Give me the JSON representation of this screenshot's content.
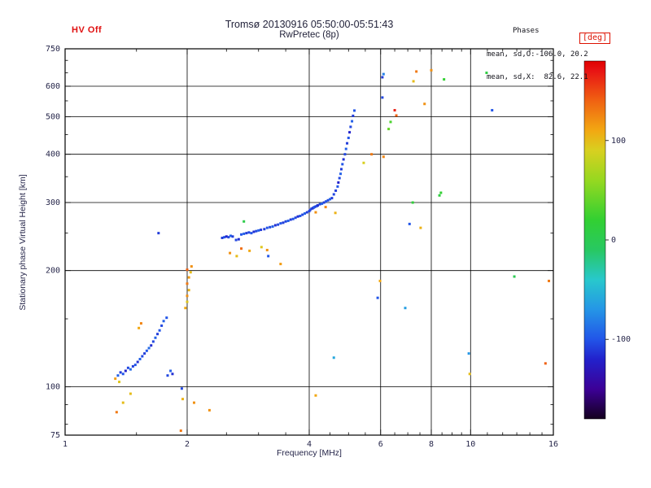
{
  "header": {
    "hv_status": "HV Off",
    "title": "Tromsø 20130916 05:50:00-05:51:43",
    "subtitle": "RwPretec (8p)",
    "phases": {
      "label": "Phases",
      "line_o": "mean, sd,O:-106.0, 20.2",
      "line_x": "mean, sd,X:  82.6, 22.1"
    }
  },
  "colors": {
    "hv_red": "#e01010",
    "text": "#26264a",
    "frame": "#000000",
    "colorbar_box_red": "#dd1100",
    "background": "#ffffff"
  },
  "chart_data": {
    "type": "scatter",
    "title": "Tromsø 20130916 05:50:00-05:51:43",
    "subtitle": "RwPretec (8p)",
    "xlabel": "Frequency [MHz]",
    "ylabel": "Stationary phase Virtual Height [km]",
    "x_scale": "log",
    "y_scale": "log",
    "xlim": [
      1,
      16
    ],
    "ylim": [
      75,
      750
    ],
    "x_ticks": [
      1,
      2,
      4,
      6,
      8,
      10,
      16
    ],
    "x_minor_ticks": [
      1.5,
      2.5,
      3,
      3.5,
      4.5,
      5,
      5.5,
      6.5,
      7,
      7.5,
      8.5,
      9,
      9.5,
      11,
      12,
      13,
      14,
      15
    ],
    "y_ticks": [
      75,
      100,
      200,
      300,
      400,
      500,
      600,
      750
    ],
    "y_minor_ticks": [
      80,
      90,
      150,
      250,
      350,
      450,
      550,
      650,
      700
    ],
    "x_grid": [
      2,
      4,
      6,
      8,
      10
    ],
    "y_grid": [
      100,
      200,
      300,
      400,
      500,
      600
    ],
    "grid": true,
    "legend": "colorbar-right",
    "colorbar": {
      "label": "[deg]",
      "ticks": [
        100,
        0,
        -100
      ],
      "range": [
        -180,
        180
      ],
      "stops": [
        [
          -180,
          "#14001e"
        ],
        [
          -150,
          "#3c0096"
        ],
        [
          -120,
          "#2222cc"
        ],
        [
          -100,
          "#2255e8"
        ],
        [
          -70,
          "#2596e6"
        ],
        [
          -40,
          "#28c8cc"
        ],
        [
          -10,
          "#28c862"
        ],
        [
          20,
          "#32d032"
        ],
        [
          60,
          "#96d820"
        ],
        [
          90,
          "#d8d020"
        ],
        [
          110,
          "#f2a812"
        ],
        [
          140,
          "#f06212"
        ],
        [
          170,
          "#e81414"
        ],
        [
          180,
          "#e00000"
        ]
      ]
    },
    "point_format": [
      "frequency_MHz",
      "virtual_height_km",
      "phase_deg"
    ],
    "points": [
      [
        1.35,
        107,
        -95
      ],
      [
        1.37,
        109,
        -110
      ],
      [
        1.39,
        108,
        -100
      ],
      [
        1.41,
        110,
        -120
      ],
      [
        1.43,
        112,
        -105
      ],
      [
        1.45,
        111,
        -90
      ],
      [
        1.47,
        113,
        -110
      ],
      [
        1.49,
        114,
        -100
      ],
      [
        1.51,
        116,
        -115
      ],
      [
        1.53,
        118,
        -95
      ],
      [
        1.55,
        120,
        -105
      ],
      [
        1.57,
        122,
        -110
      ],
      [
        1.59,
        124,
        -100
      ],
      [
        1.61,
        126,
        -90
      ],
      [
        1.63,
        128,
        -115
      ],
      [
        1.65,
        131,
        -105
      ],
      [
        1.67,
        134,
        -95
      ],
      [
        1.69,
        137,
        -110
      ],
      [
        1.71,
        140,
        -100
      ],
      [
        1.73,
        144,
        -105
      ],
      [
        1.75,
        148,
        -95
      ],
      [
        1.78,
        151,
        -100
      ],
      [
        1.79,
        107,
        -105
      ],
      [
        1.82,
        110,
        -95
      ],
      [
        1.84,
        108,
        -115
      ],
      [
        1.33,
        105,
        115
      ],
      [
        1.36,
        103,
        95
      ],
      [
        1.39,
        91,
        100
      ],
      [
        1.34,
        86,
        130
      ],
      [
        1.52,
        142,
        110
      ],
      [
        1.54,
        146,
        125
      ],
      [
        1.45,
        96,
        100
      ],
      [
        1.93,
        77,
        130
      ],
      [
        1.7,
        250,
        -110
      ],
      [
        1.94,
        99,
        -105
      ],
      [
        1.95,
        93,
        105
      ],
      [
        2.08,
        91,
        120
      ],
      [
        1.98,
        160,
        110
      ],
      [
        2.0,
        166,
        95
      ],
      [
        2.0,
        172,
        120
      ],
      [
        2.02,
        178,
        105
      ],
      [
        2.0,
        185,
        130
      ],
      [
        2.02,
        192,
        115
      ],
      [
        2.04,
        198,
        100
      ],
      [
        2.0,
        201,
        140
      ],
      [
        2.05,
        205,
        120
      ],
      [
        2.27,
        87,
        120
      ],
      [
        2.44,
        243,
        -110
      ],
      [
        2.47,
        244,
        -100
      ],
      [
        2.5,
        245,
        -120
      ],
      [
        2.53,
        244,
        -105
      ],
      [
        2.56,
        246,
        -95
      ],
      [
        2.59,
        245,
        -110
      ],
      [
        2.64,
        240,
        -105
      ],
      [
        2.68,
        241,
        -115
      ],
      [
        2.72,
        248,
        -100
      ],
      [
        2.76,
        249,
        -95
      ],
      [
        2.8,
        250,
        -110
      ],
      [
        2.84,
        251,
        -105
      ],
      [
        2.88,
        250,
        -100
      ],
      [
        2.92,
        252,
        -115
      ],
      [
        2.96,
        253,
        -105
      ],
      [
        3.0,
        254,
        -95
      ],
      [
        3.04,
        255,
        -110
      ],
      [
        2.55,
        222,
        120
      ],
      [
        2.65,
        218,
        100
      ],
      [
        2.72,
        228,
        135
      ],
      [
        2.85,
        225,
        110
      ],
      [
        3.05,
        230,
        95
      ],
      [
        3.15,
        226,
        120
      ],
      [
        2.76,
        268,
        5
      ],
      [
        3.1,
        256,
        -110
      ],
      [
        3.15,
        258,
        -100
      ],
      [
        3.2,
        259,
        -105
      ],
      [
        3.25,
        260,
        -95
      ],
      [
        3.3,
        262,
        -115
      ],
      [
        3.35,
        263,
        -105
      ],
      [
        3.4,
        265,
        -100
      ],
      [
        3.45,
        266,
        -110
      ],
      [
        3.5,
        268,
        -105
      ],
      [
        3.55,
        269,
        -95
      ],
      [
        3.6,
        271,
        -110
      ],
      [
        3.65,
        272,
        -100
      ],
      [
        3.7,
        274,
        -105
      ],
      [
        3.75,
        276,
        -115
      ],
      [
        3.8,
        277,
        -100
      ],
      [
        3.85,
        279,
        -105
      ],
      [
        3.9,
        281,
        -95
      ],
      [
        3.95,
        283,
        -110
      ],
      [
        4.0,
        285,
        -105
      ],
      [
        3.17,
        218,
        -100
      ],
      [
        3.4,
        208,
        115
      ],
      [
        4.02,
        287,
        -110
      ],
      [
        4.05,
        289,
        -100
      ],
      [
        4.08,
        290,
        -120
      ],
      [
        4.1,
        291,
        -105
      ],
      [
        4.12,
        292,
        -95
      ],
      [
        4.15,
        293,
        -110
      ],
      [
        4.18,
        294,
        -100
      ],
      [
        4.2,
        295,
        -115
      ],
      [
        4.25,
        297,
        -105
      ],
      [
        4.3,
        298,
        -95
      ],
      [
        4.35,
        300,
        -110
      ],
      [
        4.4,
        302,
        -100
      ],
      [
        4.45,
        304,
        -105
      ],
      [
        4.5,
        306,
        -95
      ],
      [
        4.55,
        308,
        -110
      ],
      [
        4.39,
        292,
        125
      ],
      [
        4.64,
        282,
        105
      ],
      [
        4.15,
        283,
        120
      ],
      [
        4.6,
        315,
        -105
      ],
      [
        4.65,
        322,
        -110
      ],
      [
        4.7,
        330,
        -100
      ],
      [
        4.72,
        338,
        -120
      ],
      [
        4.75,
        347,
        -105
      ],
      [
        4.78,
        356,
        -95
      ],
      [
        4.8,
        366,
        -110
      ],
      [
        4.83,
        377,
        -100
      ],
      [
        4.86,
        388,
        -115
      ],
      [
        4.9,
        400,
        -105
      ],
      [
        4.93,
        413,
        -95
      ],
      [
        4.96,
        427,
        -110
      ],
      [
        5.0,
        441,
        -100
      ],
      [
        5.03,
        456,
        -120
      ],
      [
        5.06,
        471,
        -105
      ],
      [
        5.1,
        487,
        -95
      ],
      [
        5.13,
        503,
        -110
      ],
      [
        5.17,
        519,
        -100
      ],
      [
        4.6,
        119,
        -60
      ],
      [
        4.15,
        95,
        110
      ],
      [
        5.45,
        380,
        90
      ],
      [
        5.7,
        400,
        130
      ],
      [
        5.98,
        188,
        110
      ],
      [
        5.9,
        170,
        -100
      ],
      [
        6.1,
        394,
        125
      ],
      [
        6.06,
        633,
        -110
      ],
      [
        6.1,
        645,
        -80
      ],
      [
        6.06,
        561,
        -105
      ],
      [
        6.28,
        465,
        40
      ],
      [
        6.35,
        485,
        30
      ],
      [
        6.5,
        520,
        165
      ],
      [
        6.56,
        504,
        140
      ],
      [
        6.9,
        160,
        -65
      ],
      [
        7.07,
        264,
        -100
      ],
      [
        7.2,
        300,
        15
      ],
      [
        7.23,
        618,
        100
      ],
      [
        7.35,
        655,
        130
      ],
      [
        7.53,
        258,
        105
      ],
      [
        7.7,
        540,
        120
      ],
      [
        8.0,
        660,
        120
      ],
      [
        8.38,
        313,
        10
      ],
      [
        8.45,
        318,
        20
      ],
      [
        8.6,
        625,
        20
      ],
      [
        9.9,
        122,
        -70
      ],
      [
        9.95,
        108,
        100
      ],
      [
        10.95,
        650,
        10
      ],
      [
        11.3,
        520,
        -100
      ],
      [
        12.82,
        193,
        0
      ],
      [
        15.6,
        188,
        130
      ],
      [
        15.3,
        115,
        140
      ]
    ]
  }
}
